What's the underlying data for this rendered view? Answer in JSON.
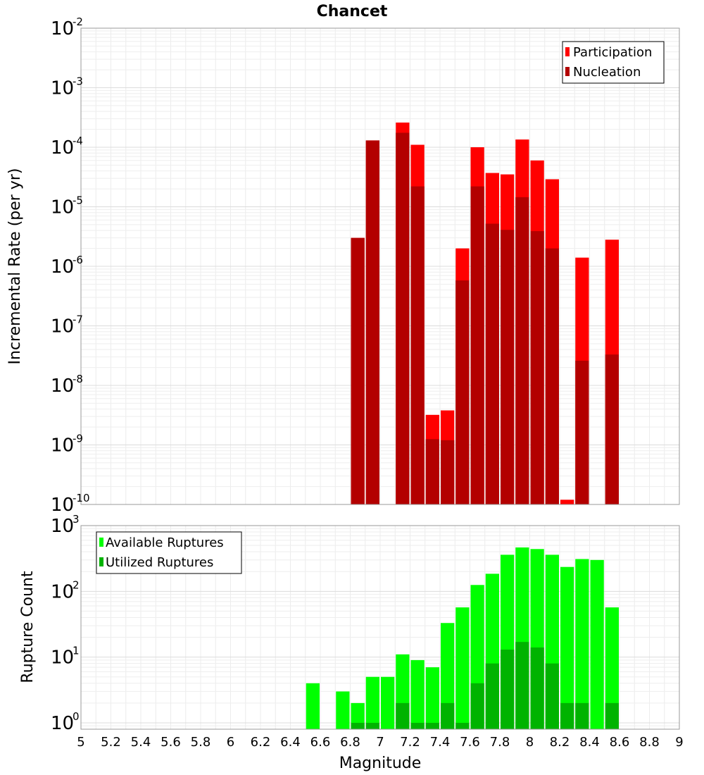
{
  "chart_data": [
    {
      "type": "bar",
      "title": "Chancet",
      "xlabel": "",
      "ylabel": "Incremental Rate (per yr)",
      "yscale": "log",
      "ylim": [
        1e-10,
        0.01
      ],
      "xlim": [
        5,
        9
      ],
      "bar_width": 0.1,
      "legend": "top-right",
      "grid": true,
      "y_ticks": [
        {
          "base": "10",
          "exp": "-2",
          "value": 0.01
        },
        {
          "base": "10",
          "exp": "-3",
          "value": 0.001
        },
        {
          "base": "10",
          "exp": "-4",
          "value": 0.0001
        },
        {
          "base": "10",
          "exp": "-5",
          "value": 1e-05
        },
        {
          "base": "10",
          "exp": "-6",
          "value": 1e-06
        },
        {
          "base": "10",
          "exp": "-7",
          "value": 1e-07
        },
        {
          "base": "10",
          "exp": "-8",
          "value": 1e-08
        },
        {
          "base": "10",
          "exp": "-9",
          "value": 1e-09
        },
        {
          "base": "10",
          "exp": "-10",
          "value": 1e-10
        }
      ],
      "series": [
        {
          "name": "Participation",
          "color": "#ff0000",
          "x": [
            6.85,
            6.95,
            7.15,
            7.25,
            7.35,
            7.45,
            7.55,
            7.65,
            7.75,
            7.85,
            7.95,
            8.05,
            8.15,
            8.25,
            8.35,
            8.55
          ],
          "values": [
            3e-06,
            0.00013,
            0.00026,
            0.00011,
            3.2e-09,
            3.8e-09,
            2e-06,
            0.0001,
            3.7e-05,
            3.5e-05,
            0.000135,
            6e-05,
            2.9e-05,
            1.2e-10,
            1.4e-06,
            2.8e-06
          ]
        },
        {
          "name": "Nucleation",
          "color": "#b30000",
          "x": [
            6.85,
            6.95,
            7.15,
            7.25,
            7.35,
            7.45,
            7.55,
            7.65,
            7.75,
            7.85,
            7.95,
            8.05,
            8.15,
            8.35,
            8.55
          ],
          "values": [
            3e-06,
            0.00013,
            0.000175,
            2.2e-05,
            1.25e-09,
            1.2e-09,
            5.8e-07,
            2.2e-05,
            5.2e-06,
            4.1e-06,
            1.45e-05,
            3.9e-06,
            2e-06,
            2.6e-08,
            3.3e-08
          ]
        }
      ]
    },
    {
      "type": "bar",
      "title": "",
      "xlabel": "Magnitude",
      "ylabel": "Rupture Count",
      "yscale": "log",
      "ylim": [
        0.8,
        1000
      ],
      "xlim": [
        5,
        9
      ],
      "bar_width": 0.1,
      "legend": "top-left",
      "grid": true,
      "x_ticks": [
        "5",
        "5.2",
        "5.4",
        "5.6",
        "5.8",
        "6",
        "6.2",
        "6.4",
        "6.6",
        "6.8",
        "7",
        "7.2",
        "7.4",
        "7.6",
        "7.8",
        "8",
        "8.2",
        "8.4",
        "8.6",
        "8.8",
        "9"
      ],
      "y_ticks": [
        {
          "base": "10",
          "exp": "3",
          "value": 1000
        },
        {
          "base": "10",
          "exp": "2",
          "value": 100
        },
        {
          "base": "10",
          "exp": "1",
          "value": 10
        },
        {
          "base": "10",
          "exp": "0",
          "value": 1
        }
      ],
      "series": [
        {
          "name": "Available Ruptures",
          "color": "#00ff00",
          "x": [
            6.55,
            6.75,
            6.85,
            6.95,
            7.05,
            7.15,
            7.25,
            7.35,
            7.45,
            7.55,
            7.65,
            7.75,
            7.85,
            7.95,
            8.05,
            8.15,
            8.25,
            8.35,
            8.45,
            8.55
          ],
          "values": [
            4,
            3,
            2,
            5,
            5,
            11,
            9,
            7,
            33,
            57,
            125,
            185,
            360,
            465,
            440,
            360,
            235,
            310,
            300,
            57
          ]
        },
        {
          "name": "Utilized Ruptures",
          "color": "#00b300",
          "x": [
            6.85,
            6.95,
            7.15,
            7.25,
            7.35,
            7.45,
            7.55,
            7.65,
            7.75,
            7.85,
            7.95,
            8.05,
            8.15,
            8.25,
            8.35,
            8.55
          ],
          "values": [
            1,
            1,
            2,
            1,
            1,
            2,
            1,
            4,
            8,
            13,
            17,
            14,
            8,
            2,
            2,
            2
          ]
        }
      ]
    }
  ]
}
